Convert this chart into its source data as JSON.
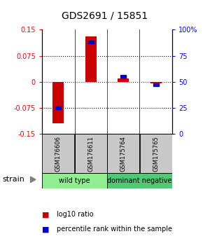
{
  "title": "GDS2691 / 15851",
  "samples": [
    "GSM176606",
    "GSM176611",
    "GSM175764",
    "GSM175765"
  ],
  "log10_ratio": [
    -0.12,
    0.13,
    0.01,
    -0.004
  ],
  "percentile_rank": [
    25,
    88,
    55,
    47
  ],
  "ylim_left": [
    -0.15,
    0.15
  ],
  "ylim_right": [
    0,
    100
  ],
  "yticks_left": [
    -0.15,
    -0.075,
    0,
    0.075,
    0.15
  ],
  "ytick_labels_left": [
    "-0.15",
    "-0.075",
    "0",
    "0.075",
    "0.15"
  ],
  "yticks_right": [
    0,
    25,
    50,
    75,
    100
  ],
  "ytick_labels_right": [
    "0",
    "25",
    "50",
    "75",
    "100%"
  ],
  "groups": [
    {
      "label": "wild type",
      "samples": [
        0,
        1
      ],
      "color": "#90EE90"
    },
    {
      "label": "dominant negative",
      "samples": [
        2,
        3
      ],
      "color": "#50C878"
    }
  ],
  "group_label_prefix": "strain",
  "bar_color_red": "#CC0000",
  "bar_color_blue": "#0000CC",
  "bar_width": 0.35,
  "background_color": "#ffffff",
  "plot_bg": "#ffffff",
  "sample_label_area_color": "#C8C8C8",
  "dotted_line_color": "#000000",
  "zero_line_color": "#CC0000"
}
